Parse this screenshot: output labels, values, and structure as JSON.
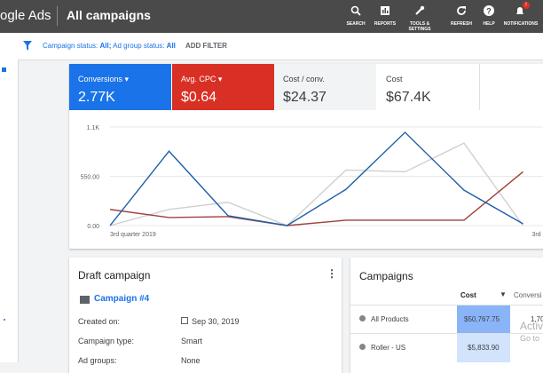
{
  "header": {
    "brand": "ogle Ads",
    "title": "All campaigns",
    "nav": [
      "SEARCH",
      "REPORTS",
      "TOOLS &",
      "SETTINGS",
      "REFRESH",
      "HELP",
      "NOTIFICATIONS"
    ],
    "badge": "!"
  },
  "filter": {
    "parts": [
      "Campaign status:",
      "All;",
      "Ad group status:",
      "All"
    ],
    "add": "ADD FILTER"
  },
  "scorecards": [
    {
      "label": "Conversions",
      "value": "2.77K"
    },
    {
      "label": "Avg. CPC",
      "value": "$0.64"
    },
    {
      "label": "Cost / conv.",
      "value": "$24.37"
    },
    {
      "label": "Cost",
      "value": "$67.4K"
    }
  ],
  "chart_data": {
    "type": "line",
    "categories": [
      "3rd quarter 2019",
      null,
      null,
      null,
      null,
      null,
      null,
      "3rd"
    ],
    "series": [
      {
        "color": "#1f5fa8",
        "values": [
          0,
          830,
          110,
          0,
          405,
          1040,
          395,
          20
        ]
      },
      {
        "color": "#a0413a",
        "values": [
          180,
          90,
          100,
          0,
          60,
          60,
          60,
          600
        ]
      },
      {
        "color": "#d0d0d0",
        "values": [
          0,
          180,
          260,
          0,
          620,
          600,
          920,
          0
        ]
      }
    ],
    "ylim": [
      0,
      1100
    ],
    "yticks": [
      {
        "value": 1100,
        "label": "1.1K"
      },
      {
        "value": 550,
        "label": "550.00"
      },
      {
        "value": 0,
        "label": "0.00"
      }
    ],
    "grid": true
  },
  "draft": {
    "title": "Draft campaign",
    "campaign": "Campaign #4",
    "rows": [
      [
        "Created on:",
        "Sep 30, 2019"
      ],
      [
        "Campaign type:",
        "Smart"
      ],
      [
        "Ad groups:",
        "None"
      ]
    ]
  },
  "campaigns": {
    "title": "Campaigns",
    "columns": [
      "Cost",
      "Conversi"
    ],
    "rows": [
      [
        "All Products",
        "$50,767.75",
        "1,70"
      ],
      [
        "Roller - US",
        "$5,833.90"
      ]
    ],
    "watermark": [
      "Activ",
      "Go to"
    ]
  }
}
